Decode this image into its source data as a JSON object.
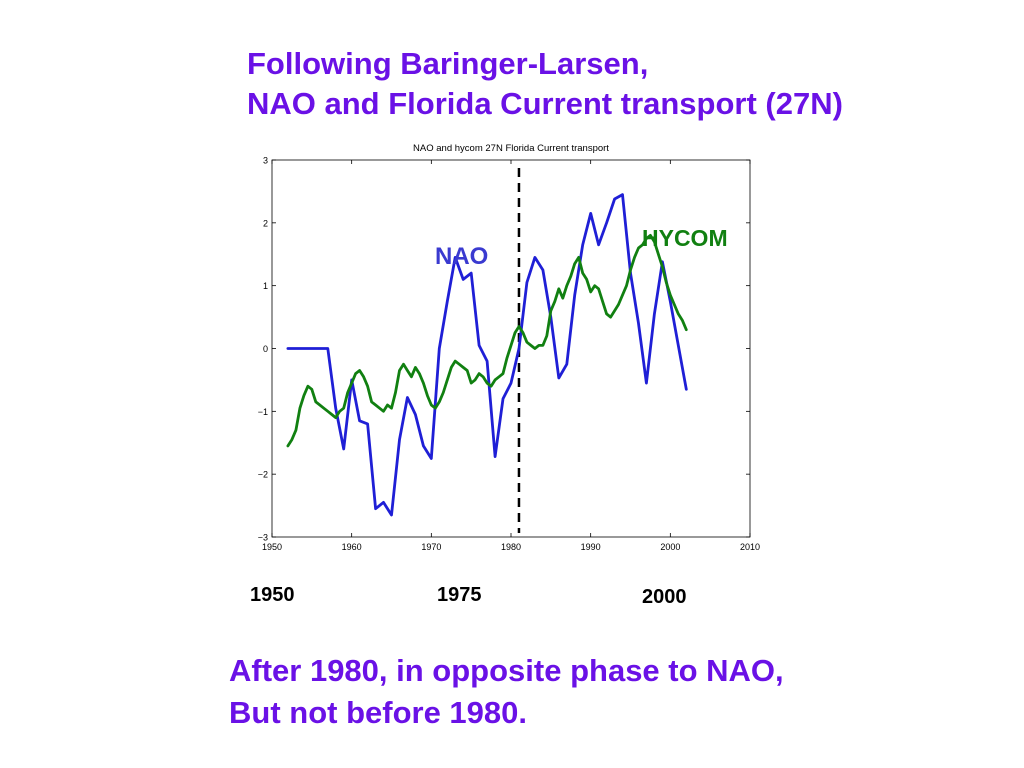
{
  "colors": {
    "text_accent": "#6a11e6",
    "nao_line": "#1f1fd6",
    "hycom_line": "#118011",
    "nao_label": "#3a3ad0",
    "hycom_label": "#118011",
    "axis": "#000000"
  },
  "slide": {
    "title_line1": "Following Baringer-Larsen,",
    "title_line2": "NAO and Florida Current transport (27N)",
    "footer_line1": "After 1980, in opposite phase to NAO,",
    "footer_line2": "But not before 1980.",
    "year_labels": [
      "1950",
      "1975",
      "2000"
    ]
  },
  "chart_data": {
    "type": "line",
    "title": "NAO and hycom 27N Florida Current transport",
    "xlabel": "",
    "ylabel": "",
    "xlim": [
      1950,
      2010
    ],
    "ylim": [
      -3,
      3
    ],
    "xticks": [
      1950,
      1960,
      1970,
      1980,
      1990,
      2000,
      2010
    ],
    "yticks": [
      -3,
      -2,
      -1,
      0,
      1,
      2,
      3
    ],
    "grid": false,
    "vline_x": 1981,
    "annotations": [
      {
        "text": "NAO",
        "series": "NAO"
      },
      {
        "text": "HYCOM",
        "series": "HYCOM"
      }
    ],
    "series": [
      {
        "name": "NAO",
        "x": [
          1952,
          1957,
          1958,
          1959,
          1960,
          1961,
          1962,
          1963,
          1964,
          1965,
          1966,
          1967,
          1968,
          1969,
          1970,
          1971,
          1972,
          1973,
          1974,
          1975,
          1976,
          1977,
          1978,
          1979,
          1980,
          1981,
          1982,
          1983,
          1984,
          1985,
          1986,
          1987,
          1988,
          1989,
          1990,
          1991,
          1992,
          1993,
          1994,
          1995,
          1996,
          1997,
          1998,
          1999,
          2000,
          2001,
          2002
        ],
        "y": [
          0.0,
          0.0,
          -0.95,
          -1.6,
          -0.5,
          -1.15,
          -1.2,
          -2.55,
          -2.45,
          -2.65,
          -1.45,
          -0.78,
          -1.05,
          -1.55,
          -1.75,
          0.0,
          0.75,
          1.45,
          1.1,
          1.2,
          0.05,
          -0.2,
          -1.72,
          -0.8,
          -0.55,
          0.0,
          1.05,
          1.45,
          1.25,
          0.5,
          -0.47,
          -0.25,
          0.85,
          1.65,
          2.15,
          1.65,
          2.0,
          2.38,
          2.45,
          1.2,
          0.4,
          -0.55,
          0.55,
          1.38,
          0.75,
          0.05,
          -0.65
        ]
      },
      {
        "name": "HYCOM",
        "x": [
          1952,
          1952.5,
          1953,
          1953.5,
          1954,
          1954.5,
          1955,
          1955.5,
          1956,
          1956.5,
          1957,
          1957.5,
          1958,
          1958.5,
          1959,
          1959.5,
          1960,
          1960.5,
          1961,
          1961.5,
          1962,
          1962.5,
          1963,
          1963.5,
          1964,
          1964.5,
          1965,
          1965.5,
          1966,
          1966.5,
          1967,
          1967.5,
          1968,
          1968.5,
          1969,
          1969.5,
          1970,
          1970.5,
          1971,
          1971.5,
          1972,
          1972.5,
          1973,
          1973.5,
          1974,
          1974.5,
          1975,
          1975.5,
          1976,
          1976.5,
          1977,
          1977.5,
          1978,
          1978.5,
          1979,
          1979.5,
          1980,
          1980.5,
          1981,
          1981.5,
          1982,
          1982.5,
          1983,
          1983.5,
          1984,
          1984.5,
          1985,
          1985.5,
          1986,
          1986.5,
          1987,
          1987.5,
          1988,
          1988.5,
          1989,
          1989.5,
          1990,
          1990.5,
          1991,
          1991.5,
          1992,
          1992.5,
          1993,
          1993.5,
          1994,
          1994.5,
          1995,
          1995.5,
          1996,
          1996.5,
          1997,
          1997.5,
          1998,
          1998.5,
          1999,
          1999.5,
          2000,
          2000.5,
          2001,
          2001.5,
          2002
        ],
        "y": [
          -1.55,
          -1.45,
          -1.3,
          -0.95,
          -0.75,
          -0.6,
          -0.65,
          -0.85,
          -0.9,
          -0.95,
          -1.0,
          -1.05,
          -1.1,
          -1.0,
          -0.95,
          -0.7,
          -0.55,
          -0.4,
          -0.35,
          -0.45,
          -0.6,
          -0.85,
          -0.9,
          -0.95,
          -1.0,
          -0.9,
          -0.95,
          -0.7,
          -0.35,
          -0.25,
          -0.35,
          -0.45,
          -0.3,
          -0.4,
          -0.55,
          -0.75,
          -0.9,
          -0.95,
          -0.85,
          -0.7,
          -0.5,
          -0.3,
          -0.2,
          -0.25,
          -0.3,
          -0.35,
          -0.55,
          -0.5,
          -0.4,
          -0.45,
          -0.55,
          -0.6,
          -0.5,
          -0.45,
          -0.4,
          -0.15,
          0.05,
          0.25,
          0.35,
          0.25,
          0.1,
          0.05,
          0.0,
          0.05,
          0.05,
          0.2,
          0.6,
          0.75,
          0.95,
          0.8,
          1.0,
          1.15,
          1.35,
          1.45,
          1.2,
          1.1,
          0.9,
          1.0,
          0.95,
          0.75,
          0.55,
          0.5,
          0.6,
          0.7,
          0.85,
          1.0,
          1.25,
          1.45,
          1.6,
          1.65,
          1.75,
          1.8,
          1.7,
          1.5,
          1.3,
          1.05,
          0.85,
          0.7,
          0.55,
          0.45,
          0.3
        ]
      }
    ]
  }
}
